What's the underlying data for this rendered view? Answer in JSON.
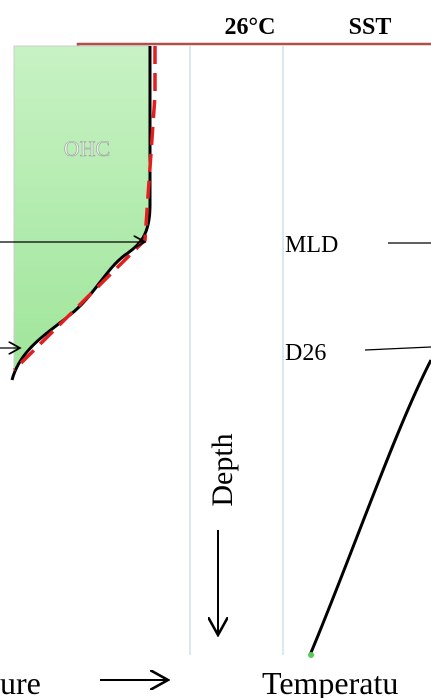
{
  "top_labels": {
    "isotherm": "26°C",
    "sst": "SST"
  },
  "region": "OHC",
  "levels": {
    "mld": "MLD",
    "d26": "D26"
  },
  "axis": {
    "depth": "Depth"
  },
  "bottom": {
    "left": "ure",
    "right": "Temperatu"
  }
}
